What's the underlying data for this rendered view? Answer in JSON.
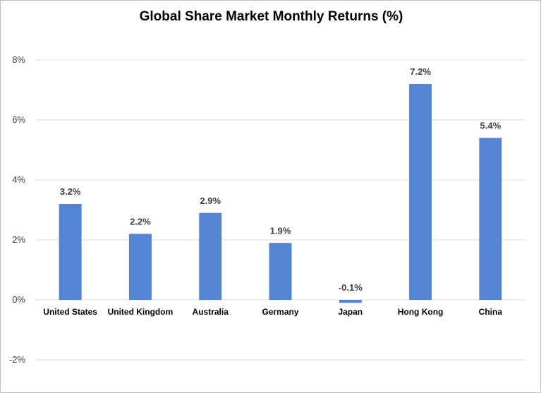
{
  "chart_data": {
    "type": "bar",
    "title": "Global Share Market Monthly Returns (%)",
    "xlabel": "",
    "ylabel": "",
    "categories": [
      "United States",
      "United Kingdom",
      "Australia",
      "Germany",
      "Japan",
      "Hong Kong",
      "China"
    ],
    "values": [
      3.2,
      2.2,
      2.9,
      1.9,
      -0.1,
      7.2,
      5.4
    ],
    "data_labels": [
      "3.2%",
      "2.2%",
      "2.9%",
      "1.9%",
      "-0.1%",
      "7.2%",
      "5.4%"
    ],
    "ylim": [
      -2,
      8
    ],
    "yticks": [
      -2,
      0,
      2,
      4,
      6,
      8
    ],
    "ytick_labels": [
      "-2%",
      "0%",
      "2%",
      "4%",
      "6%",
      "8%"
    ],
    "grid": true,
    "legend": "none",
    "bar_color": "#5584D3",
    "grid_color": "#D9D9D9"
  }
}
